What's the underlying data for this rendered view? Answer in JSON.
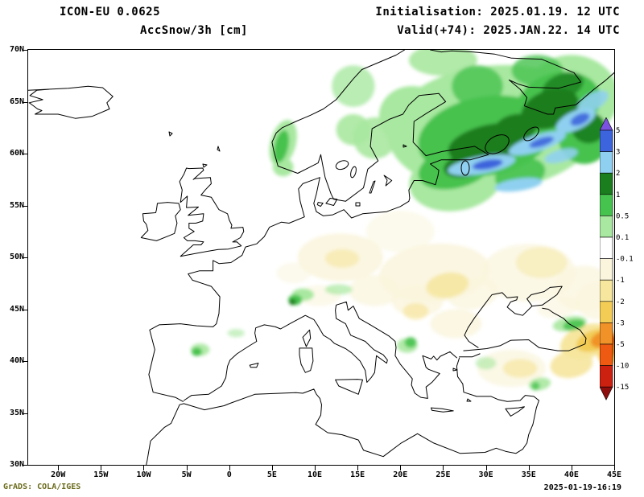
{
  "header": {
    "model_title": "ICON-EU 0.0625",
    "variable_title": "AccSnow/3h [cm]",
    "init_label": "Initialisation: 2025.01.19. 12 UTC",
    "valid_label": "Valid(+74): 2025.JAN.22. 14 UTC"
  },
  "footer": {
    "credit": "GrADS: COLA/IGES",
    "created": "2025-01-19-16:19"
  },
  "axes": {
    "lat_values": [
      70,
      65,
      60,
      55,
      50,
      45,
      40,
      35,
      30
    ],
    "lat_labels": [
      "70N",
      "65N",
      "60N",
      "55N",
      "50N",
      "45N",
      "40N",
      "35N",
      "30N"
    ],
    "lon_values": [
      -20,
      -15,
      -10,
      -5,
      0,
      5,
      10,
      15,
      20,
      25,
      30,
      35,
      40,
      45
    ],
    "lon_labels": [
      "20W",
      "15W",
      "10W",
      "5W",
      "0",
      "5E",
      "10E",
      "15E",
      "20E",
      "25E",
      "30E",
      "35E",
      "40E",
      "45E"
    ]
  },
  "colorbar": {
    "tick_labels": [
      "5",
      "3",
      "2",
      "1",
      "0.5",
      "0.1",
      "-0.1",
      "-1",
      "-2",
      "-3",
      "-5",
      "-10",
      "-15"
    ],
    "colors": [
      "#7b52e0",
      "#3c64dc",
      "#8fd0f0",
      "#1a7d1e",
      "#46c24e",
      "#a8e8a0",
      "#ffffff",
      "#faf5dc",
      "#f6e69e",
      "#f2cc55",
      "#f09228",
      "#ee5a11",
      "#cc2010",
      "#8e0e0e"
    ]
  },
  "chart_data": {
    "type": "filled-contour-map",
    "model": "ICON-EU 0.0625",
    "variable": "AccSnow/3h",
    "units": "cm",
    "projection": "latlon",
    "lon_range": [
      -23.5,
      45
    ],
    "lat_range": [
      30,
      70
    ],
    "contour_levels": [
      -15,
      -10,
      -5,
      -3,
      -2,
      -1,
      -0.1,
      0.1,
      0.5,
      1,
      2,
      3,
      5
    ],
    "legend_orientation": "vertical-right",
    "palette": {
      "lg": "#a8e8a0",
      "g": "#46c24e",
      "dg": "#1a7d1e",
      "lb": "#8fd0f0",
      "b": "#3c64dc",
      "cream": "#faf5dc",
      "py": "#f6e69e",
      "gold": "#f2cc55",
      "or": "#f09228",
      "dor": "#ee5a11"
    },
    "blobs": [
      [
        13,
        50,
        5,
        2.3,
        0,
        "cream",
        0.85
      ],
      [
        24,
        48.5,
        6.5,
        2.8,
        -5,
        "cream",
        0.85
      ],
      [
        20,
        52.5,
        4,
        2,
        0,
        "cream",
        0.55
      ],
      [
        35,
        48.5,
        5.5,
        2.8,
        0,
        "cream",
        0.7
      ],
      [
        41.5,
        47,
        3.5,
        2.2,
        0,
        "cream",
        0.7
      ],
      [
        22,
        45.8,
        3,
        1.5,
        0,
        "cream",
        0.8
      ],
      [
        26.5,
        43.6,
        3,
        1.4,
        0,
        "cream",
        0.8
      ],
      [
        17,
        46.8,
        3,
        1.5,
        0,
        "cream",
        0.7
      ],
      [
        33,
        39.3,
        4,
        1.8,
        0,
        "cream",
        0.7
      ],
      [
        43,
        45.8,
        2.5,
        1.8,
        0,
        "cream",
        0.7
      ],
      [
        38.5,
        45.2,
        2.5,
        1,
        -10,
        "cream",
        0.6
      ],
      [
        7.5,
        48.5,
        2,
        1,
        0,
        "cream",
        0.5
      ],
      [
        10.5,
        46.3,
        2.5,
        1,
        0,
        "cream",
        0.6
      ],
      [
        28.5,
        46.5,
        3,
        1.5,
        -10,
        "cream",
        0.7
      ],
      [
        25.5,
        47.3,
        2.5,
        1.2,
        -10,
        "py",
        0.85
      ],
      [
        13.2,
        49.9,
        2,
        0.9,
        0,
        "py",
        0.6
      ],
      [
        21.8,
        44.8,
        1.5,
        0.8,
        0,
        "py",
        0.7
      ],
      [
        34,
        39.3,
        2,
        0.9,
        0,
        "py",
        0.7
      ],
      [
        40,
        39.7,
        2.5,
        1.3,
        -10,
        "py",
        0.9
      ],
      [
        36.5,
        49.5,
        3,
        1.5,
        0,
        "py",
        0.5
      ],
      [
        41.8,
        41.9,
        3.2,
        1.6,
        -18,
        "py",
        1
      ],
      [
        42.8,
        42,
        2.3,
        1,
        -18,
        "gold",
        1
      ],
      [
        44.3,
        40.5,
        1.2,
        0.8,
        0,
        "gold",
        0.9
      ],
      [
        43.7,
        42.1,
        1.5,
        0.75,
        -18,
        "or",
        1
      ],
      [
        44.7,
        41.2,
        0.9,
        0.7,
        0,
        "or",
        1
      ],
      [
        44.9,
        42,
        0.5,
        0.45,
        0,
        "dor",
        1
      ],
      [
        31,
        62.5,
        12.5,
        6,
        -5,
        "lg",
        1
      ],
      [
        26.5,
        57.5,
        5.5,
        3,
        -10,
        "lg",
        1
      ],
      [
        40,
        65.5,
        5.5,
        4,
        0,
        "lg",
        1
      ],
      [
        21.5,
        63.5,
        4,
        3,
        10,
        "lg",
        1
      ],
      [
        17,
        61.5,
        2.5,
        2,
        0,
        "lg",
        0.9
      ],
      [
        14.5,
        62.3,
        2,
        1.5,
        0,
        "lg",
        0.9
      ],
      [
        6.3,
        61,
        1.5,
        2.3,
        15,
        "lg",
        1
      ],
      [
        6.3,
        58.7,
        1.2,
        0.9,
        0,
        "lg",
        1
      ],
      [
        14.5,
        66.5,
        2.5,
        2,
        0,
        "lg",
        0.8
      ],
      [
        25,
        69,
        4,
        1.5,
        0,
        "lg",
        0.9
      ],
      [
        39.8,
        43.6,
        2,
        0.7,
        -10,
        "lg",
        0.9
      ],
      [
        8.6,
        46.4,
        1.3,
        0.6,
        0,
        "lg",
        1
      ],
      [
        12.8,
        46.9,
        1.6,
        0.5,
        0,
        "lg",
        0.7
      ],
      [
        -3.4,
        41.1,
        1.1,
        0.6,
        0,
        "lg",
        0.9
      ],
      [
        0.8,
        42.7,
        1,
        0.4,
        0,
        "lg",
        0.6
      ],
      [
        20.8,
        41.5,
        1.2,
        0.7,
        0,
        "lg",
        0.9
      ],
      [
        36.3,
        37.8,
        1.3,
        0.6,
        -10,
        "lg",
        0.9
      ],
      [
        30,
        39.8,
        1.2,
        0.6,
        0,
        "lg",
        0.6
      ],
      [
        30,
        61.7,
        8,
        3.8,
        -10,
        "g",
        1
      ],
      [
        38.5,
        64.8,
        5,
        3,
        -15,
        "g",
        1
      ],
      [
        26.5,
        58.7,
        4.5,
        2,
        -15,
        "g",
        1
      ],
      [
        41.5,
        61.5,
        3,
        2.5,
        0,
        "g",
        1
      ],
      [
        34,
        58,
        3,
        1.5,
        -15,
        "g",
        0.9
      ],
      [
        6.1,
        60.7,
        0.8,
        1.6,
        12,
        "g",
        1
      ],
      [
        29,
        66.5,
        3,
        2,
        0,
        "g",
        0.8
      ],
      [
        36,
        68,
        3,
        1.5,
        0,
        "g",
        0.8
      ],
      [
        40.3,
        43.5,
        1.3,
        0.5,
        -10,
        "g",
        0.9
      ],
      [
        7.7,
        45.9,
        0.8,
        0.5,
        0,
        "g",
        1
      ],
      [
        -3.8,
        40.9,
        0.6,
        0.4,
        0,
        "g",
        1
      ],
      [
        21.2,
        41.8,
        0.7,
        0.5,
        0,
        "g",
        0.9
      ],
      [
        35.8,
        37.6,
        0.5,
        0.4,
        0,
        "g",
        0.8
      ],
      [
        30.5,
        61,
        5,
        1.8,
        -12,
        "dg",
        1
      ],
      [
        37.5,
        64.3,
        3.5,
        1.8,
        -20,
        "dg",
        1
      ],
      [
        28,
        59,
        3,
        1.2,
        -15,
        "dg",
        1
      ],
      [
        33.5,
        62.5,
        2.5,
        1.3,
        -10,
        "dg",
        1
      ],
      [
        42,
        62.5,
        2,
        1.5,
        0,
        "dg",
        0.9
      ],
      [
        39,
        66.5,
        2.5,
        1.2,
        -20,
        "dg",
        0.8
      ],
      [
        7.4,
        45.7,
        0.4,
        0.3,
        0,
        "dg",
        1
      ],
      [
        29.5,
        58.9,
        4,
        0.85,
        -10,
        "lb",
        1
      ],
      [
        36,
        61,
        3.5,
        0.8,
        -18,
        "lb",
        1
      ],
      [
        40.5,
        63.2,
        2.5,
        0.9,
        -25,
        "lb",
        1
      ],
      [
        33.8,
        57,
        2.8,
        0.6,
        -8,
        "lb",
        1
      ],
      [
        42.5,
        65,
        2,
        0.8,
        -30,
        "lb",
        0.9
      ],
      [
        38.8,
        59.8,
        2,
        0.6,
        -15,
        "lb",
        0.9
      ],
      [
        30.2,
        58.95,
        1.8,
        0.45,
        -10,
        "b",
        1
      ],
      [
        36.5,
        61.1,
        1.5,
        0.4,
        -18,
        "b",
        0.9
      ],
      [
        41,
        63.3,
        1.2,
        0.5,
        -25,
        "b",
        0.9
      ]
    ]
  }
}
